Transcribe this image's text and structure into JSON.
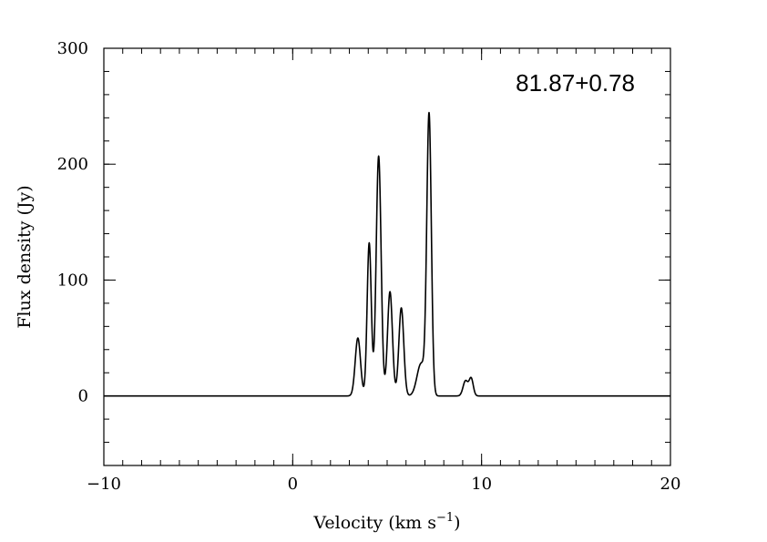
{
  "chart_data": {
    "type": "line",
    "title": "",
    "annotation": "81.87+0.78",
    "xlabel": "Velocity (km s",
    "xlabel_sup": "−1",
    "xlabel_close": ")",
    "ylabel": "Flux density (Jy)",
    "xlim": [
      -10,
      20
    ],
    "ylim": [
      -60,
      300
    ],
    "x_ticks": [
      -10,
      0,
      10,
      20
    ],
    "x_tick_labels": [
      "−10",
      "0",
      "10",
      "20"
    ],
    "y_ticks": [
      0,
      100,
      200,
      300
    ],
    "y_tick_labels": [
      "0",
      "100",
      "200",
      "300"
    ],
    "grid": false,
    "series": [
      {
        "baseline": 0,
        "components": [
          {
            "center": 3.45,
            "amplitude": 50,
            "width": 0.14
          },
          {
            "center": 4.05,
            "amplitude": 132,
            "width": 0.11
          },
          {
            "center": 4.55,
            "amplitude": 207,
            "width": 0.13
          },
          {
            "center": 5.15,
            "amplitude": 90,
            "width": 0.13
          },
          {
            "center": 5.75,
            "amplitude": 76,
            "width": 0.13
          },
          {
            "center": 6.8,
            "amplitude": 28,
            "width": 0.22
          },
          {
            "center": 7.22,
            "amplitude": 240,
            "width": 0.12
          },
          {
            "center": 9.15,
            "amplitude": 13,
            "width": 0.13
          },
          {
            "center": 9.45,
            "amplitude": 15,
            "width": 0.11
          }
        ]
      }
    ]
  }
}
